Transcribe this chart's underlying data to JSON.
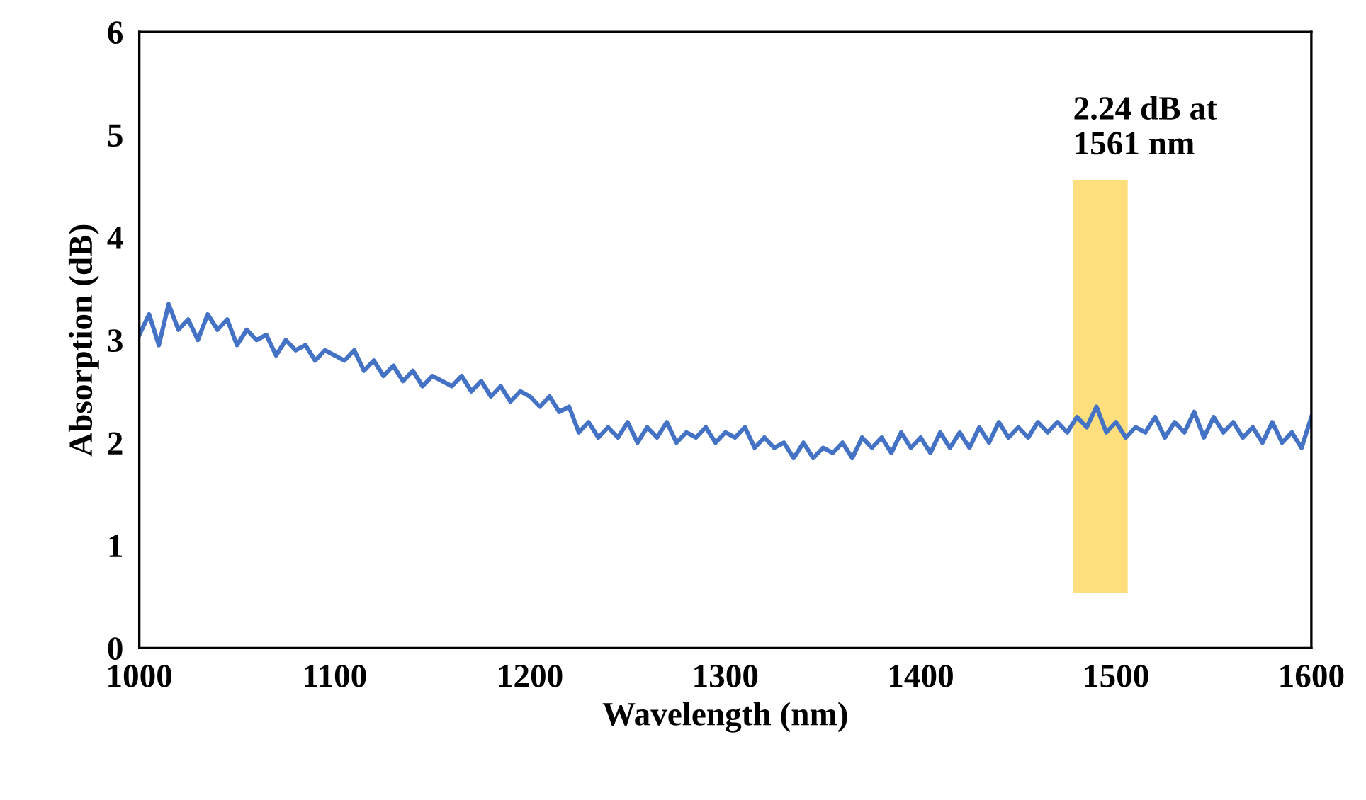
{
  "chart_data": {
    "type": "line",
    "xlabel": "Wavelength (nm)",
    "ylabel": "Absorption (dB)",
    "xlim": [
      1000,
      1600
    ],
    "xticks": [
      1000,
      1100,
      1200,
      1300,
      1400,
      1500,
      1600
    ],
    "ylim": [
      0,
      6
    ],
    "yticks": [
      0,
      1,
      2,
      3,
      4,
      5,
      6
    ],
    "grid": false,
    "legend": false,
    "marker": "none",
    "line_style": "solid",
    "bands": [
      {
        "axis": "x",
        "from": 1478,
        "to": 1506,
        "label": "2.24 dB at\n1561 nm",
        "color": "#ffd966"
      }
    ],
    "x": [
      1000,
      1005,
      1010,
      1015,
      1020,
      1025,
      1030,
      1035,
      1040,
      1045,
      1050,
      1055,
      1060,
      1065,
      1070,
      1075,
      1080,
      1085,
      1090,
      1095,
      1100,
      1105,
      1110,
      1115,
      1120,
      1125,
      1130,
      1135,
      1140,
      1145,
      1150,
      1155,
      1160,
      1165,
      1170,
      1175,
      1180,
      1185,
      1190,
      1195,
      1200,
      1205,
      1210,
      1215,
      1220,
      1225,
      1230,
      1235,
      1240,
      1245,
      1250,
      1255,
      1260,
      1265,
      1270,
      1275,
      1280,
      1285,
      1290,
      1295,
      1300,
      1305,
      1310,
      1315,
      1320,
      1325,
      1330,
      1335,
      1340,
      1345,
      1350,
      1355,
      1360,
      1365,
      1370,
      1375,
      1380,
      1385,
      1390,
      1395,
      1400,
      1405,
      1410,
      1415,
      1420,
      1425,
      1430,
      1435,
      1440,
      1445,
      1450,
      1455,
      1460,
      1465,
      1470,
      1475,
      1480,
      1485,
      1490,
      1495,
      1500,
      1505,
      1510,
      1515,
      1520,
      1525,
      1530,
      1535,
      1540,
      1545,
      1550,
      1555,
      1560,
      1565,
      1570,
      1575,
      1580,
      1585,
      1590,
      1595,
      1600
    ],
    "series": [
      {
        "color": "#4472c4",
        "values": [
          3.05,
          3.25,
          2.95,
          3.35,
          3.1,
          3.2,
          3.0,
          3.25,
          3.1,
          3.2,
          2.95,
          3.1,
          3.0,
          3.05,
          2.85,
          3.0,
          2.9,
          2.95,
          2.8,
          2.9,
          2.85,
          2.8,
          2.9,
          2.7,
          2.8,
          2.65,
          2.75,
          2.6,
          2.7,
          2.55,
          2.65,
          2.6,
          2.55,
          2.65,
          2.5,
          2.6,
          2.45,
          2.55,
          2.4,
          2.5,
          2.45,
          2.35,
          2.45,
          2.3,
          2.35,
          2.1,
          2.2,
          2.05,
          2.15,
          2.05,
          2.2,
          2.0,
          2.15,
          2.05,
          2.2,
          2.0,
          2.1,
          2.05,
          2.15,
          2.0,
          2.1,
          2.05,
          2.15,
          1.95,
          2.05,
          1.95,
          2.0,
          1.85,
          2.0,
          1.85,
          1.95,
          1.9,
          2.0,
          1.85,
          2.05,
          1.95,
          2.05,
          1.9,
          2.1,
          1.95,
          2.05,
          1.9,
          2.1,
          1.95,
          2.1,
          1.95,
          2.15,
          2.0,
          2.2,
          2.05,
          2.15,
          2.05,
          2.2,
          2.1,
          2.2,
          2.1,
          2.25,
          2.15,
          2.35,
          2.1,
          2.2,
          2.05,
          2.15,
          2.1,
          2.25,
          2.05,
          2.2,
          2.1,
          2.3,
          2.05,
          2.25,
          2.1,
          2.2,
          2.05,
          2.15,
          2.0,
          2.2,
          2.0,
          2.1,
          1.95,
          2.25
        ]
      }
    ]
  }
}
